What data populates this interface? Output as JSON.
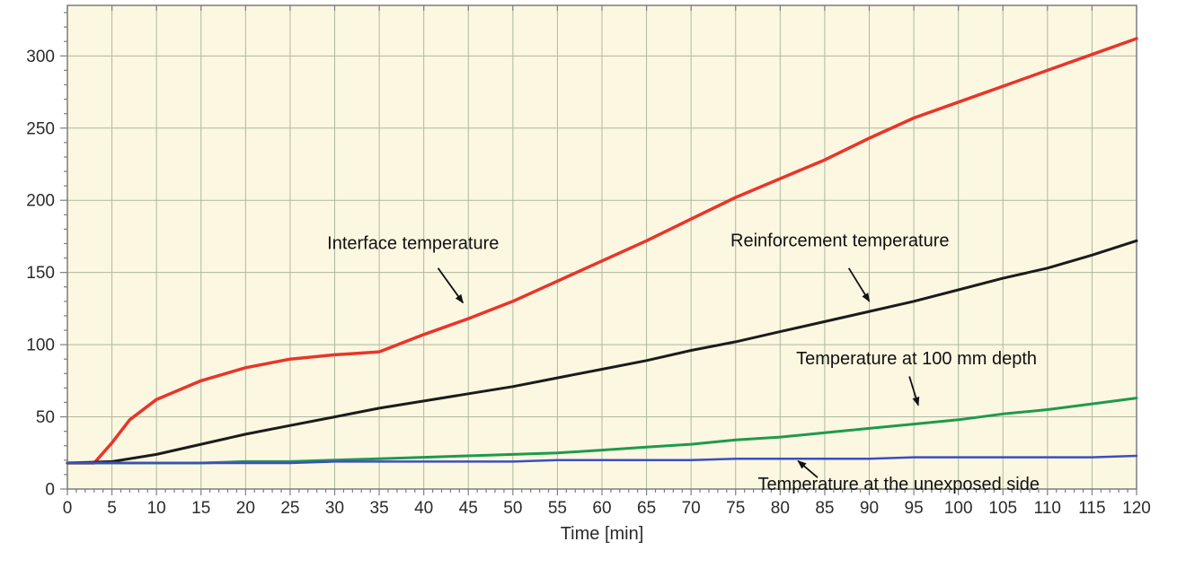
{
  "chart_data": {
    "type": "line",
    "title": "",
    "xlabel": "Time [min]",
    "ylabel": "",
    "xlim": [
      0,
      120
    ],
    "ylim": [
      0,
      335
    ],
    "x_ticks": [
      0,
      5,
      10,
      15,
      20,
      25,
      30,
      35,
      40,
      45,
      50,
      55,
      60,
      65,
      70,
      75,
      80,
      85,
      90,
      95,
      100,
      105,
      110,
      115,
      120
    ],
    "y_ticks": [
      0,
      50,
      100,
      150,
      200,
      250,
      300
    ],
    "x_minor_step": 1,
    "y_minor_step": 10,
    "grid": true,
    "legend_position": "annotations-on-plot",
    "colors": {
      "plot_background": "#fcf7e1",
      "grid": "#aeb9a0",
      "axis": "#7d7d7d",
      "tick_label": "#2b2b2b",
      "annotation": "#111111"
    },
    "series": [
      {
        "name": "Interface temperature",
        "color": "#e8352b",
        "width": 3.5,
        "x": [
          0,
          3,
          5,
          7,
          10,
          15,
          20,
          25,
          30,
          35,
          40,
          45,
          50,
          55,
          60,
          65,
          70,
          75,
          80,
          85,
          90,
          95,
          100,
          105,
          110,
          115,
          120
        ],
        "values": [
          18,
          18,
          32,
          48,
          62,
          75,
          84,
          90,
          93,
          95,
          107,
          118,
          130,
          144,
          158,
          172,
          187,
          202,
          215,
          228,
          243,
          257,
          268,
          279,
          290,
          301,
          312
        ]
      },
      {
        "name": "Reinforcement temperature",
        "color": "#1b1b1b",
        "width": 3,
        "x": [
          0,
          5,
          10,
          15,
          20,
          25,
          30,
          35,
          40,
          45,
          50,
          55,
          60,
          65,
          70,
          75,
          80,
          85,
          90,
          95,
          100,
          105,
          110,
          115,
          120
        ],
        "values": [
          18,
          19,
          24,
          31,
          38,
          44,
          50,
          56,
          61,
          66,
          71,
          77,
          83,
          89,
          96,
          102,
          109,
          116,
          123,
          130,
          138,
          146,
          153,
          162,
          172
        ]
      },
      {
        "name": "Temperature at 100 mm depth",
        "color": "#1e9a4c",
        "width": 3,
        "x": [
          0,
          5,
          10,
          15,
          20,
          25,
          30,
          35,
          40,
          45,
          50,
          55,
          60,
          65,
          70,
          75,
          80,
          85,
          90,
          95,
          100,
          105,
          110,
          115,
          120
        ],
        "values": [
          18,
          18,
          18,
          18,
          19,
          19,
          20,
          21,
          22,
          23,
          24,
          25,
          27,
          29,
          31,
          34,
          36,
          39,
          42,
          45,
          48,
          52,
          55,
          59,
          63
        ]
      },
      {
        "name": "Temperature at the unexposed side",
        "color": "#3d4ec0",
        "width": 2.5,
        "x": [
          0,
          5,
          10,
          15,
          20,
          25,
          30,
          35,
          40,
          45,
          50,
          55,
          60,
          65,
          70,
          75,
          80,
          85,
          90,
          95,
          100,
          105,
          110,
          115,
          120
        ],
        "values": [
          18,
          18,
          18,
          18,
          18,
          18,
          19,
          19,
          19,
          19,
          19,
          20,
          20,
          20,
          20,
          21,
          21,
          21,
          21,
          22,
          22,
          22,
          22,
          22,
          23
        ]
      }
    ],
    "annotations": [
      {
        "text": "Interface temperature",
        "text_x": 38.8,
        "text_y": 170,
        "arrow": {
          "x1": 41.6,
          "y1": 153,
          "x2": 44.4,
          "y2": 129
        }
      },
      {
        "text": "Reinforcement temperature",
        "text_x": 86.7,
        "text_y": 172,
        "arrow": {
          "x1": 87.7,
          "y1": 153,
          "x2": 90.0,
          "y2": 130
        }
      },
      {
        "text": "Temperature at 100 mm depth",
        "text_x": 95.3,
        "text_y": 90,
        "arrow": {
          "x1": 94.5,
          "y1": 78,
          "x2": 95.5,
          "y2": 58
        }
      },
      {
        "text": "Temperature at the unexposed side",
        "text_x": 93.3,
        "text_y": 3,
        "arrow": {
          "x1": 84.2,
          "y1": 8,
          "x2": 82.0,
          "y2": 19.5
        }
      }
    ]
  }
}
